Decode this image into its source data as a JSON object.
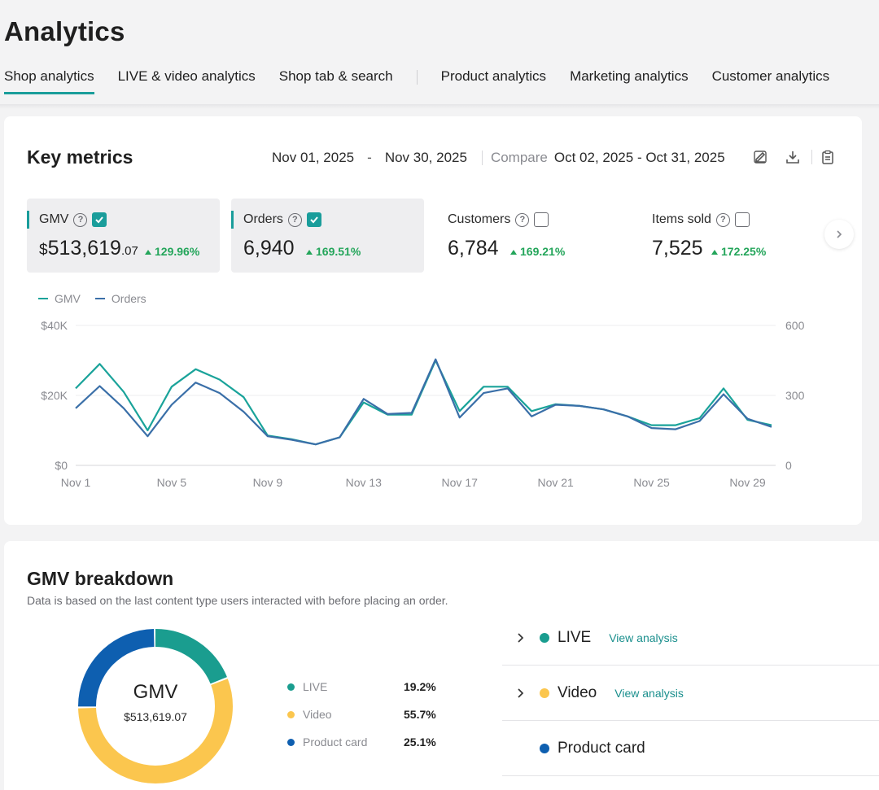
{
  "page": {
    "title": "Analytics"
  },
  "tabs": [
    {
      "label": "Shop analytics",
      "active": true
    },
    {
      "label": "LIVE & video analytics"
    },
    {
      "label": "Shop tab & search"
    },
    {
      "label": "Product analytics"
    },
    {
      "label": "Marketing analytics"
    },
    {
      "label": "Customer analytics"
    }
  ],
  "key_metrics": {
    "title": "Key metrics",
    "date_start": "Nov 01, 2025",
    "date_separator": "-",
    "date_end": "Nov 30, 2025",
    "compare_label": "Compare",
    "compare_range": "Oct 02, 2025 - Oct 31, 2025",
    "icons": [
      "edit-icon",
      "download-icon",
      "clipboard-icon"
    ],
    "cards": [
      {
        "label": "GMV",
        "currency": "$",
        "value": "513,619",
        "cents": ".07",
        "change": "129.96%",
        "checked": true,
        "selected": true
      },
      {
        "label": "Orders",
        "value": "6,940",
        "change": "169.51%",
        "checked": true,
        "selected": true
      },
      {
        "label": "Customers",
        "value": "6,784",
        "change": "169.21%",
        "checked": false,
        "selected": false
      },
      {
        "label": "Items sold",
        "value": "7,525",
        "change": "172.25%",
        "checked": false,
        "selected": false
      }
    ]
  },
  "chart_data": {
    "type": "line",
    "title": "",
    "x": [
      "Nov 1",
      "Nov 2",
      "Nov 3",
      "Nov 4",
      "Nov 5",
      "Nov 6",
      "Nov 7",
      "Nov 8",
      "Nov 9",
      "Nov 10",
      "Nov 11",
      "Nov 12",
      "Nov 13",
      "Nov 14",
      "Nov 15",
      "Nov 16",
      "Nov 17",
      "Nov 18",
      "Nov 19",
      "Nov 20",
      "Nov 21",
      "Nov 22",
      "Nov 23",
      "Nov 24",
      "Nov 25",
      "Nov 26",
      "Nov 27",
      "Nov 28",
      "Nov 29",
      "Nov 30"
    ],
    "x_tick_labels": [
      "Nov 1",
      "Nov 5",
      "Nov 9",
      "Nov 13",
      "Nov 17",
      "Nov 21",
      "Nov 25",
      "Nov 29"
    ],
    "series": [
      {
        "name": "GMV",
        "axis": "left",
        "color": "#1aa39a",
        "values": [
          22000,
          29000,
          21000,
          10000,
          22500,
          27500,
          24500,
          19500,
          8500,
          7500,
          6000,
          8000,
          18000,
          14500,
          14500,
          30000,
          15500,
          22500,
          22500,
          15500,
          17500,
          17000,
          16000,
          14000,
          11500,
          11500,
          13500,
          22000,
          13000,
          11500
        ]
      },
      {
        "name": "Orders",
        "axis": "right",
        "color": "#3a6fa8",
        "values": [
          245,
          340,
          245,
          125,
          260,
          355,
          310,
          230,
          125,
          110,
          90,
          120,
          285,
          220,
          225,
          455,
          205,
          310,
          330,
          210,
          260,
          255,
          240,
          210,
          160,
          155,
          190,
          305,
          200,
          165
        ]
      }
    ],
    "y_left": {
      "ticks": [
        "$40K",
        "$20K",
        "$0"
      ],
      "range": [
        0,
        40000
      ]
    },
    "y_right": {
      "ticks": [
        "600",
        "300",
        "0"
      ],
      "range": [
        0,
        600
      ]
    },
    "legend": [
      "GMV",
      "Orders"
    ],
    "grid": true
  },
  "breakdown": {
    "title": "GMV breakdown",
    "subtitle": "Data is based on the last content type users interacted with before placing an order.",
    "center_label": "GMV",
    "center_value": "$513,619.07",
    "segments": [
      {
        "name": "LIVE",
        "pct": "19.2%",
        "value": 19.2,
        "color": "#1a9d8f"
      },
      {
        "name": "Video",
        "pct": "55.7%",
        "value": 55.7,
        "color": "#fbc64e"
      },
      {
        "name": "Product card",
        "pct": "25.1%",
        "value": 25.1,
        "color": "#0e5fb0"
      }
    ],
    "list": [
      {
        "name": "LIVE",
        "link": "View analysis",
        "color": "#1a9d8f",
        "expandable": true
      },
      {
        "name": "Video",
        "link": "View analysis",
        "color": "#fbc64e",
        "expandable": true
      },
      {
        "name": "Product card",
        "color": "#0e5fb0",
        "expandable": false
      }
    ]
  }
}
